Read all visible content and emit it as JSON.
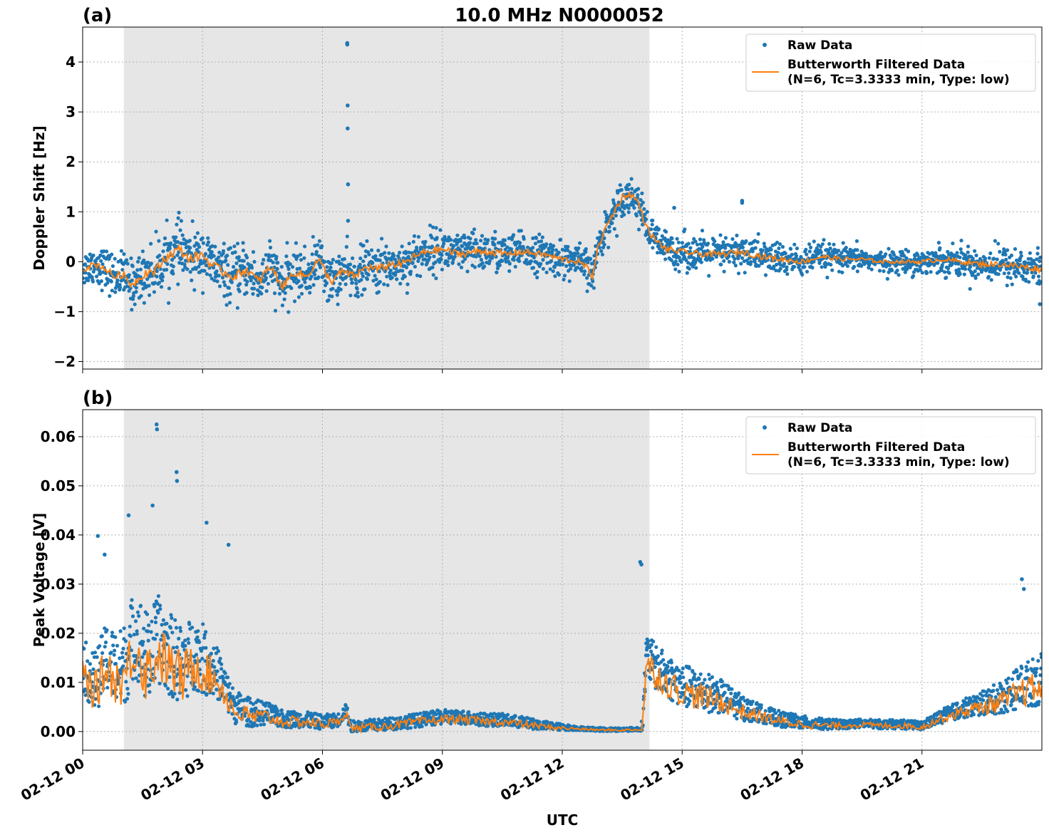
{
  "figure": {
    "title": "10.0 MHz N0000052",
    "xlabel": "UTC"
  },
  "colors": {
    "raw": "#1f77b4",
    "filtered": "#ff7f0e",
    "night_shade": "#e6e6e6",
    "grid": "#b0b0b0"
  },
  "chart_data": [
    {
      "type": "scatter",
      "panel_label": "(a)",
      "ylabel": "Doppler Shift [Hz]",
      "xlim": [
        0,
        24
      ],
      "ylim": [
        -2.15,
        4.7
      ],
      "yticks": [
        -2,
        -1,
        0,
        1,
        2,
        3,
        4
      ],
      "ytick_labels": [
        "−2",
        "−1",
        "0",
        "1",
        "2",
        "3",
        "4"
      ],
      "xticks": [
        0,
        3,
        6,
        9,
        12,
        15,
        18,
        21
      ],
      "xtick_labels": [
        "02-12 00",
        "02-12 03",
        "02-12 06",
        "02-12 09",
        "02-12 12",
        "02-12 15",
        "02-12 18",
        "02-12 21"
      ],
      "grid": true,
      "legend_position": "top-right",
      "shaded_region_hours": [
        1.03,
        14.18
      ],
      "series": [
        {
          "name": "Raw Data",
          "kind": "points"
        },
        {
          "name": "Butterworth Filtered Data\n(N=6, Tc=3.3333 min, Type: low)",
          "kind": "line"
        }
      ],
      "filtered_trend_x": [
        0,
        0.3,
        0.5,
        0.8,
        1.0,
        1.2,
        1.4,
        1.6,
        1.8,
        2.1,
        2.4,
        2.7,
        3.0,
        3.2,
        3.5,
        3.8,
        4.1,
        4.4,
        4.7,
        5.0,
        5.3,
        5.6,
        5.9,
        6.2,
        6.5,
        6.8,
        7.1,
        7.4,
        7.7,
        8.0,
        8.3,
        8.6,
        9.0,
        9.4,
        9.8,
        10.2,
        10.6,
        11.0,
        11.5,
        12.0,
        12.4,
        12.6,
        12.75,
        12.9,
        13.1,
        13.3,
        13.5,
        13.7,
        13.9,
        14.1,
        14.3,
        14.6,
        15.0,
        15.5,
        16.0,
        16.5,
        17.0,
        17.5,
        18.0,
        18.5,
        19.0,
        19.5,
        20.0,
        20.5,
        21.0,
        21.5,
        22.0,
        22.5,
        23.0,
        23.5,
        24.0
      ],
      "filtered_trend_y": [
        -0.15,
        -0.05,
        -0.1,
        -0.3,
        -0.25,
        -0.45,
        -0.35,
        -0.2,
        -0.2,
        0.1,
        0.25,
        0.05,
        0.15,
        -0.05,
        -0.2,
        -0.3,
        -0.15,
        -0.4,
        -0.1,
        -0.5,
        -0.2,
        -0.3,
        0.05,
        -0.4,
        -0.2,
        -0.3,
        -0.1,
        -0.15,
        -0.05,
        -0.05,
        0.1,
        0.2,
        0.25,
        0.15,
        0.2,
        0.2,
        0.15,
        0.2,
        0.15,
        0.05,
        0.0,
        -0.1,
        -0.3,
        0.3,
        0.7,
        1.0,
        1.3,
        1.35,
        1.2,
        0.7,
        0.45,
        0.25,
        0.2,
        0.15,
        0.15,
        0.2,
        0.1,
        0.05,
        0.0,
        0.1,
        0.05,
        0.05,
        0.0,
        0.0,
        0.0,
        0.05,
        0.0,
        -0.05,
        -0.05,
        -0.1,
        -0.15
      ],
      "raw_spread": [
        0.35,
        0.55,
        0.5,
        0.45,
        0.35,
        0.35,
        0.35,
        0.35,
        0.35,
        0.2,
        0.4
      ],
      "raw_spread_x": [
        0,
        2,
        5,
        8,
        12,
        12.8,
        13.5,
        14.2,
        17,
        20,
        24
      ],
      "outliers_x": [
        6.62,
        6.62,
        6.63,
        6.63,
        6.64,
        6.64,
        16.5,
        16.5,
        14.8,
        23.95
      ],
      "outliers_y": [
        4.38,
        4.35,
        3.13,
        2.67,
        1.55,
        0.82,
        1.22,
        1.18,
        1.08,
        -0.85
      ]
    },
    {
      "type": "scatter",
      "panel_label": "(b)",
      "ylabel": "Peak Voltage [V]",
      "xlim": [
        0,
        24
      ],
      "ylim": [
        -0.0038,
        0.0655
      ],
      "yticks": [
        0.0,
        0.01,
        0.02,
        0.03,
        0.04,
        0.05,
        0.06
      ],
      "ytick_labels": [
        "0.00",
        "0.01",
        "0.02",
        "0.03",
        "0.04",
        "0.05",
        "0.06"
      ],
      "xticks": [
        0,
        3,
        6,
        9,
        12,
        15,
        18,
        21
      ],
      "xtick_labels": [
        "02-12 00",
        "02-12 03",
        "02-12 06",
        "02-12 09",
        "02-12 12",
        "02-12 15",
        "02-12 18",
        "02-12 21"
      ],
      "grid": true,
      "legend_position": "top-right",
      "shaded_region_hours": [
        1.03,
        14.18
      ],
      "series": [
        {
          "name": "Raw Data",
          "kind": "points"
        },
        {
          "name": "Butterworth Filtered Data\n(N=6, Tc=3.3333 min, Type: low)",
          "kind": "line"
        }
      ],
      "filtered_trend_x": [
        0,
        0.3,
        0.6,
        0.9,
        1.1,
        1.3,
        1.6,
        1.9,
        2.2,
        2.5,
        2.8,
        3.1,
        3.4,
        3.6,
        3.8,
        4.2,
        4.6,
        5.0,
        5.5,
        6.0,
        6.4,
        6.6,
        6.7,
        7.0,
        7.5,
        8.0,
        8.5,
        9.0,
        9.5,
        10.0,
        10.5,
        11.0,
        11.5,
        12.0,
        12.5,
        13.0,
        13.5,
        13.95,
        14.0,
        14.1,
        14.3,
        14.6,
        15.0,
        15.5,
        16.0,
        16.5,
        17.0,
        17.5,
        18.0,
        18.5,
        19.0,
        19.5,
        20.0,
        20.5,
        21.0,
        21.3,
        21.6,
        22.0,
        22.5,
        23.0,
        23.5,
        24.0
      ],
      "filtered_trend_y": [
        0.012,
        0.008,
        0.013,
        0.01,
        0.012,
        0.018,
        0.012,
        0.016,
        0.013,
        0.011,
        0.014,
        0.012,
        0.01,
        0.007,
        0.004,
        0.003,
        0.003,
        0.002,
        0.002,
        0.0015,
        0.002,
        0.004,
        0.0005,
        0.0008,
        0.001,
        0.0015,
        0.002,
        0.0025,
        0.0025,
        0.002,
        0.002,
        0.0015,
        0.001,
        0.0007,
        0.0005,
        0.0003,
        0.0003,
        0.0004,
        0.0002,
        0.014,
        0.012,
        0.01,
        0.008,
        0.007,
        0.006,
        0.004,
        0.003,
        0.002,
        0.0015,
        0.0012,
        0.0012,
        0.0014,
        0.0012,
        0.0012,
        0.0009,
        0.002,
        0.003,
        0.004,
        0.005,
        0.006,
        0.008,
        0.009
      ],
      "raw_spread": [
        0.009,
        0.016,
        0.012,
        0.006,
        0.003,
        0.002,
        0.0025,
        0.002,
        0.0006,
        0.0006,
        0.008,
        0.007,
        0.003,
        0.0015,
        0.0015,
        0.004,
        0.009
      ],
      "raw_spread_x": [
        0,
        1.5,
        3.0,
        3.7,
        5.0,
        7.0,
        9.0,
        11.0,
        12.5,
        13.95,
        14.1,
        15.5,
        17.0,
        19.0,
        21.0,
        22.5,
        24.0
      ],
      "outliers_x": [
        1.85,
        1.86,
        2.35,
        2.36,
        0.38,
        0.55,
        1.15,
        1.75,
        3.1,
        3.65,
        13.95,
        13.98,
        23.5,
        23.55
      ],
      "outliers_y": [
        0.0625,
        0.0615,
        0.0528,
        0.051,
        0.0398,
        0.036,
        0.044,
        0.046,
        0.0425,
        0.038,
        0.0345,
        0.034,
        0.031,
        0.029
      ]
    }
  ]
}
